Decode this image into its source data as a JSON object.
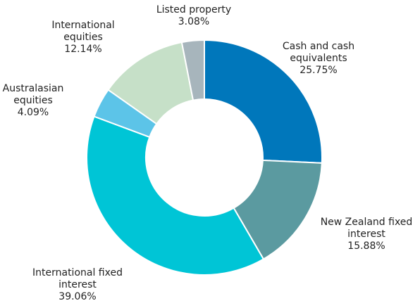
{
  "chart_data": {
    "type": "donut",
    "categories": [
      "Cash and cash equivalents",
      "New Zealand fixed interest",
      "International fixed interest",
      "Australasian equities",
      "International equities",
      "Listed property"
    ],
    "values": [
      25.75,
      15.88,
      39.06,
      4.09,
      12.14,
      3.08
    ],
    "value_labels": [
      "25.75%",
      "15.88%",
      "39.06%",
      "4.09%",
      "12.14%",
      "3.08%"
    ],
    "colors": [
      "#0077bb",
      "#5b9aa0",
      "#00c5d6",
      "#5cc4e8",
      "#c6e0c8",
      "#a7b5bc"
    ]
  }
}
